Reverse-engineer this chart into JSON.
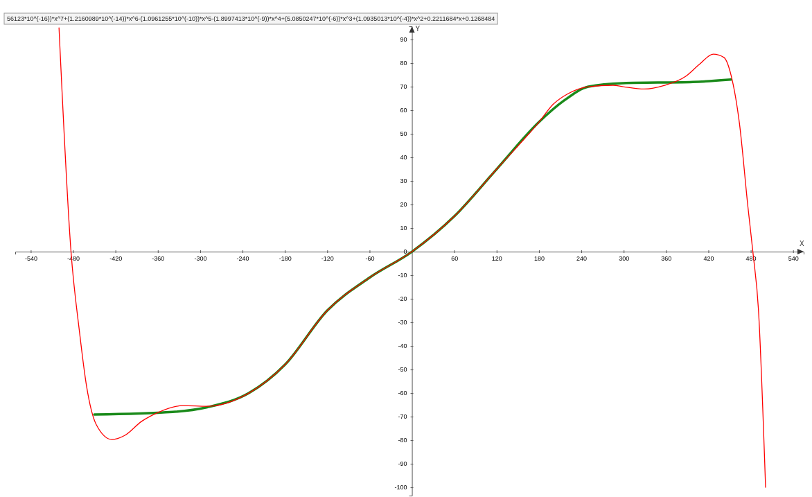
{
  "chart_data": {
    "type": "line",
    "xlabel": "X",
    "ylabel": "Y",
    "annotations": [
      "56123*10^(-16))*x^7+(1.2160989*10^(-14))*x^6-(1.0961255*10^(-10))*x^5-(1.8997413*10^(-9))*x^4+(5.0850247*10^(-6))*x^3+(1.0935013*10^(-4))*x^2+0.2211684*x+0.1268484"
    ],
    "xlim": [
      -562,
      555
    ],
    "ylim": [
      -103.5,
      95.6
    ],
    "xticks": [
      -540,
      -480,
      -420,
      -360,
      -300,
      -240,
      -180,
      -120,
      -60,
      60,
      120,
      180,
      240,
      300,
      360,
      420,
      480,
      540
    ],
    "yticks": [
      -100,
      -90,
      -80,
      -70,
      -60,
      -50,
      -40,
      -30,
      -20,
      -10,
      0,
      10,
      20,
      30,
      40,
      50,
      60,
      70,
      80,
      90
    ],
    "grid": false,
    "marker": "none",
    "line_style": "solid",
    "series": [
      {
        "color": "#ff0000",
        "x": [
          -500,
          -483,
          -471,
          -461,
          -447,
          -425,
          -407,
          -383,
          -358,
          -324,
          -290,
          -231,
          -180,
          -120,
          -60,
          0,
          60,
          120,
          180,
          200,
          221,
          250,
          285,
          299,
          329,
          358,
          388,
          407,
          427,
          442,
          452,
          464,
          476,
          483,
          491,
          501
        ],
        "values": [
          95,
          0,
          -34,
          -57,
          -73.5,
          -79.7,
          -78,
          -72,
          -68,
          -65.3,
          -65.6,
          -60,
          -48,
          -25,
          -11,
          0,
          15,
          35,
          55,
          62.5,
          67,
          70,
          70.6,
          70,
          69,
          70.6,
          74.4,
          79.4,
          83.8,
          82.4,
          75,
          54.4,
          19,
          0,
          -25,
          -100
        ]
      },
      {
        "color": "#1a8a1a",
        "x": [
          -450,
          -339,
          -290,
          -231,
          -180,
          -120,
          -60,
          0,
          60,
          120,
          180,
          215,
          250,
          299,
          398,
          452
        ],
        "values": [
          -69.1,
          -68,
          -66,
          -60,
          -48,
          -25,
          -11,
          0,
          15,
          35,
          55,
          64,
          70,
          71.5,
          72,
          73
        ]
      }
    ]
  }
}
